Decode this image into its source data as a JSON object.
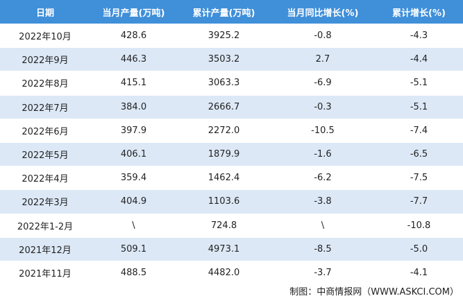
{
  "table": {
    "header": [
      "日期",
      "当月产量(万吨)",
      "累计产量(万吨)",
      "当月同比增长(%)",
      "累计增长(%)"
    ],
    "rows": [
      [
        "2022年10月",
        "428.6",
        "3925.2",
        "-0.8",
        "-4.3"
      ],
      [
        "2022年9月",
        "446.3",
        "3503.2",
        "2.7",
        "-4.4"
      ],
      [
        "2022年8月",
        "415.1",
        "3063.3",
        "-6.9",
        "-5.1"
      ],
      [
        "2022年7月",
        "384.0",
        "2666.7",
        "-0.3",
        "-5.1"
      ],
      [
        "2022年6月",
        "397.9",
        "2272.0",
        "-10.5",
        "-7.4"
      ],
      [
        "2022年5月",
        "406.1",
        "1879.9",
        "-1.6",
        "-6.5"
      ],
      [
        "2022年4月",
        "359.4",
        "1462.4",
        "-6.2",
        "-7.5"
      ],
      [
        "2022年3月",
        "404.9",
        "1103.6",
        "-3.8",
        "-7.7"
      ],
      [
        "2022年1-2月",
        "\\",
        "724.8",
        "\\",
        "-10.8"
      ],
      [
        "2021年12月",
        "509.1",
        "4973.1",
        "-8.5",
        "-5.0"
      ],
      [
        "2021年11月",
        "488.5",
        "4482.0",
        "-3.7",
        "-4.1"
      ]
    ]
  },
  "footer": "制图：中商情报网（WWW.ASKCI.COM）"
}
